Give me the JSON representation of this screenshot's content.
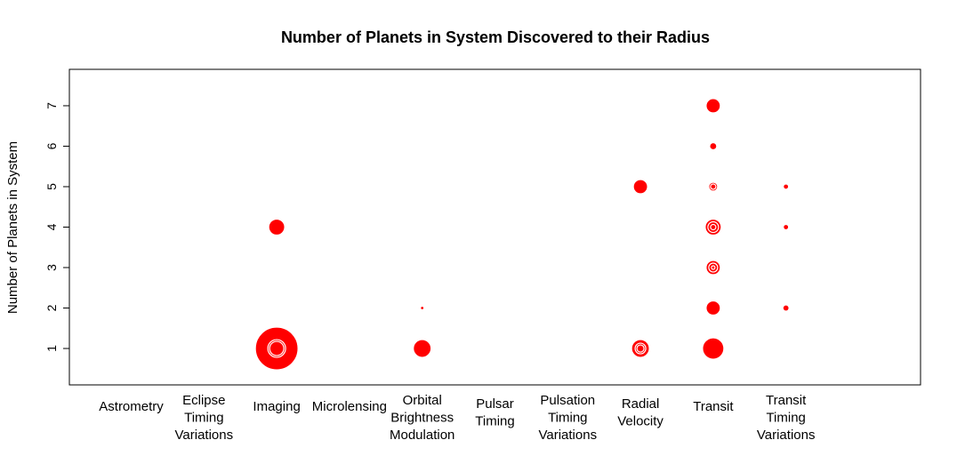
{
  "chart_data": {
    "type": "scatter",
    "title": "Number of Planets in System Discovered to their Radius",
    "xlabel": "",
    "ylabel": "Number of Planets in System",
    "categories": [
      [
        "Astrometry"
      ],
      [
        "Eclipse",
        "Timing",
        "Variations"
      ],
      [
        "Imaging"
      ],
      [
        "Microlensing"
      ],
      [
        "Orbital",
        "Brightness",
        "Modulation"
      ],
      [
        "Pulsar",
        "Timing"
      ],
      [
        "Pulsation",
        "Timing",
        "Variations"
      ],
      [
        "Radial",
        "Velocity"
      ],
      [
        "Transit"
      ],
      [
        "Transit",
        "Timing",
        "Variations"
      ]
    ],
    "yticks": [
      1,
      2,
      3,
      4,
      5,
      6,
      7
    ],
    "ylim": [
      0.1,
      7.9
    ],
    "xlim": [
      0.15,
      11.85
    ],
    "grid": false,
    "marker_color": "#ff0000",
    "marker_note": "bubble size proportional to planet radius",
    "points": [
      {
        "category": "Imaging",
        "y": 1,
        "r": 24
      },
      {
        "category": "Imaging",
        "y": 1,
        "r": 10
      },
      {
        "category": "Imaging",
        "y": 1,
        "r": 8
      },
      {
        "category": "Imaging",
        "y": 4,
        "r": 9
      },
      {
        "category": "Orbital Brightness Modulation",
        "y": 1,
        "r": 10
      },
      {
        "category": "Orbital Brightness Modulation",
        "y": 2,
        "r": 2
      },
      {
        "category": "Radial Velocity",
        "y": 1,
        "r": 10
      },
      {
        "category": "Radial Velocity",
        "y": 1,
        "r": 6
      },
      {
        "category": "Radial Velocity",
        "y": 1,
        "r": 4
      },
      {
        "category": "Radial Velocity",
        "y": 5,
        "r": 8
      },
      {
        "category": "Transit",
        "y": 1,
        "r": 12
      },
      {
        "category": "Transit",
        "y": 2,
        "r": 8
      },
      {
        "category": "Transit",
        "y": 3,
        "r": 8
      },
      {
        "category": "Transit",
        "y": 3,
        "r": 5
      },
      {
        "category": "Transit",
        "y": 3,
        "r": 2
      },
      {
        "category": "Transit",
        "y": 4,
        "r": 9
      },
      {
        "category": "Transit",
        "y": 4,
        "r": 6
      },
      {
        "category": "Transit",
        "y": 4,
        "r": 3
      },
      {
        "category": "Transit",
        "y": 5,
        "r": 5
      },
      {
        "category": "Transit",
        "y": 5,
        "r": 3
      },
      {
        "category": "Transit",
        "y": 6,
        "r": 4
      },
      {
        "category": "Transit",
        "y": 7,
        "r": 8
      },
      {
        "category": "Transit Timing Variations",
        "y": 2,
        "r": 3.5
      },
      {
        "category": "Transit Timing Variations",
        "y": 4,
        "r": 3
      },
      {
        "category": "Transit Timing Variations",
        "y": 5,
        "r": 3
      }
    ]
  }
}
